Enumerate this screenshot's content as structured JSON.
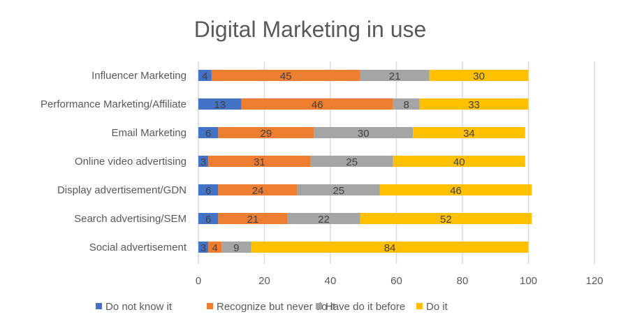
{
  "chart_data": {
    "type": "bar",
    "orientation": "horizontal",
    "stacked": true,
    "title": "Digital Marketing in use",
    "xlabel": "",
    "ylabel": "",
    "xlim": [
      0,
      120
    ],
    "xticks": [
      0,
      20,
      40,
      60,
      80,
      100,
      120
    ],
    "grid": true,
    "legend_position": "bottom",
    "categories": [
      "Influencer Marketing",
      "Performance Marketing/Affiliate",
      "Email Marketing",
      "Online video advertising",
      "Display advertisement/GDN",
      "Search advertising/SEM",
      "Social advertisement"
    ],
    "series": [
      {
        "name": "Do not know it",
        "color": "#4472C4",
        "values": [
          4,
          13,
          6,
          3,
          6,
          6,
          3
        ]
      },
      {
        "name": "Recognize but never do it",
        "color": "#ED7D31",
        "values": [
          45,
          46,
          29,
          31,
          24,
          21,
          4
        ]
      },
      {
        "name": "Have do it before",
        "color": "#A5A5A5",
        "values": [
          21,
          8,
          30,
          25,
          25,
          22,
          9
        ]
      },
      {
        "name": "Do it",
        "color": "#FFC000",
        "values": [
          30,
          33,
          34,
          40,
          46,
          52,
          84
        ]
      }
    ]
  }
}
